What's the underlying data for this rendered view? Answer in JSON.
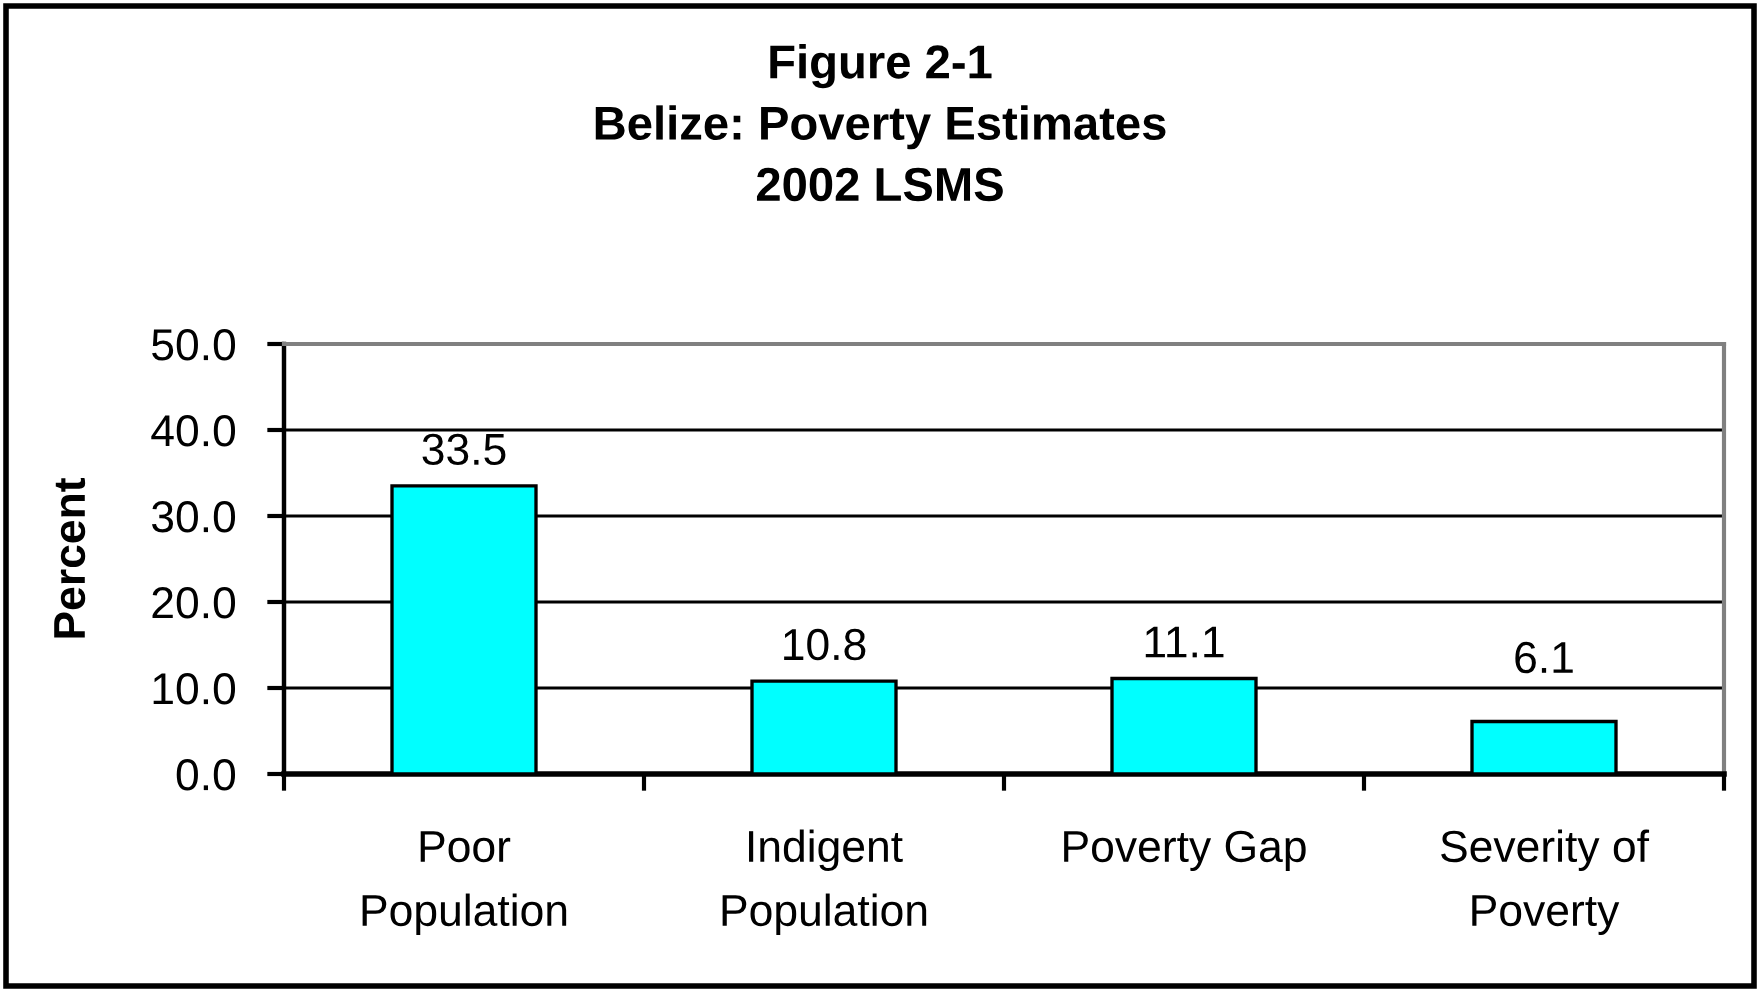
{
  "chart_data": {
    "type": "bar",
    "title": "Figure 2-1\nBelize: Poverty Estimates\n2002 LSMS",
    "ylabel": "Percent",
    "categories": [
      "Poor\nPopulation",
      "Indigent\nPopulation",
      "Poverty Gap",
      "Severity of\nPoverty"
    ],
    "values": [
      33.5,
      10.8,
      11.1,
      6.1
    ],
    "color": "#00ffff",
    "ylim": [
      0,
      50
    ],
    "yticks": [
      {
        "value": 0,
        "label": "0.0"
      },
      {
        "value": 10,
        "label": "10.0"
      },
      {
        "value": 20,
        "label": "20.0"
      },
      {
        "value": 30,
        "label": "30.0"
      },
      {
        "value": 40,
        "label": "40.0"
      },
      {
        "value": 50,
        "label": "50.0"
      }
    ],
    "grid": "y",
    "data_labels": true
  }
}
